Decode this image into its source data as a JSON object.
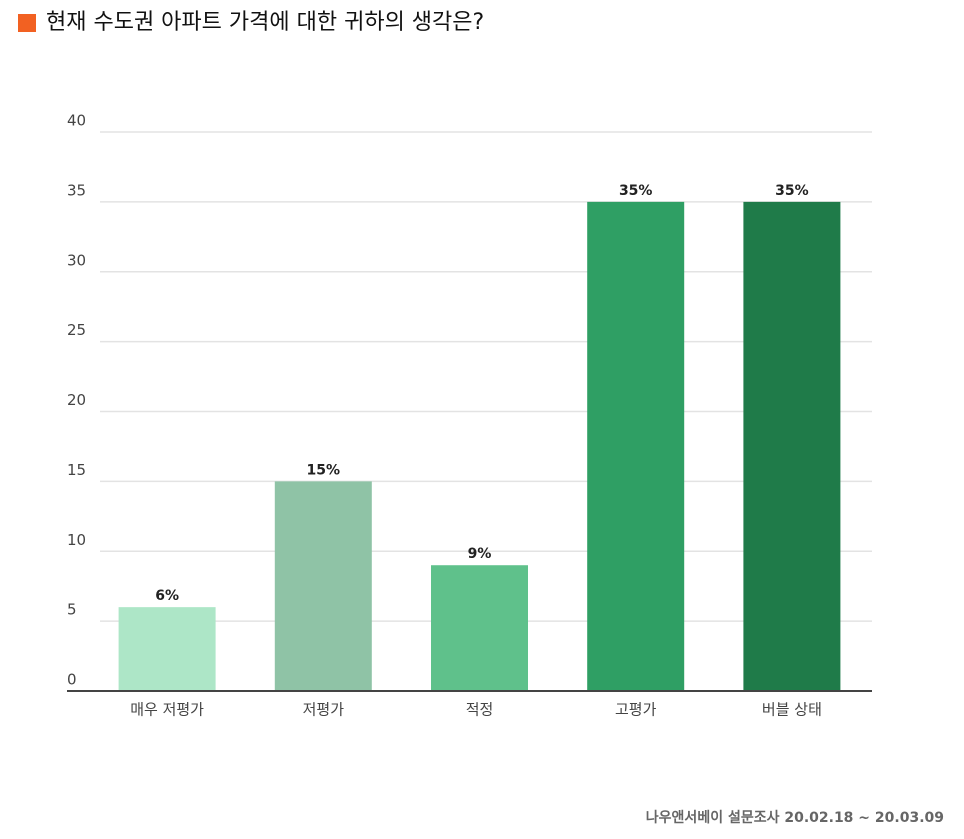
{
  "chart_data": {
    "type": "bar",
    "title": "현재 수도권 아파트 가격에 대한 귀하의 생각은?",
    "source": "나우앤서베이 설문조사 20.02.18 ~ 20.03.09",
    "categories": [
      "매우 저평가",
      "저평가",
      "적정",
      "고평가",
      "버블 상태"
    ],
    "values": [
      6,
      15,
      9,
      35,
      35
    ],
    "value_labels": [
      "6%",
      "15%",
      "9%",
      "35%",
      "35%"
    ],
    "colors": [
      "#ade6c7",
      "#8fc3a6",
      "#5fc18b",
      "#2f9f64",
      "#1f7b49"
    ],
    "ylim": [
      0,
      40
    ],
    "yticks": [
      0,
      5,
      10,
      15,
      20,
      25,
      30,
      35,
      40
    ],
    "grid": true
  }
}
